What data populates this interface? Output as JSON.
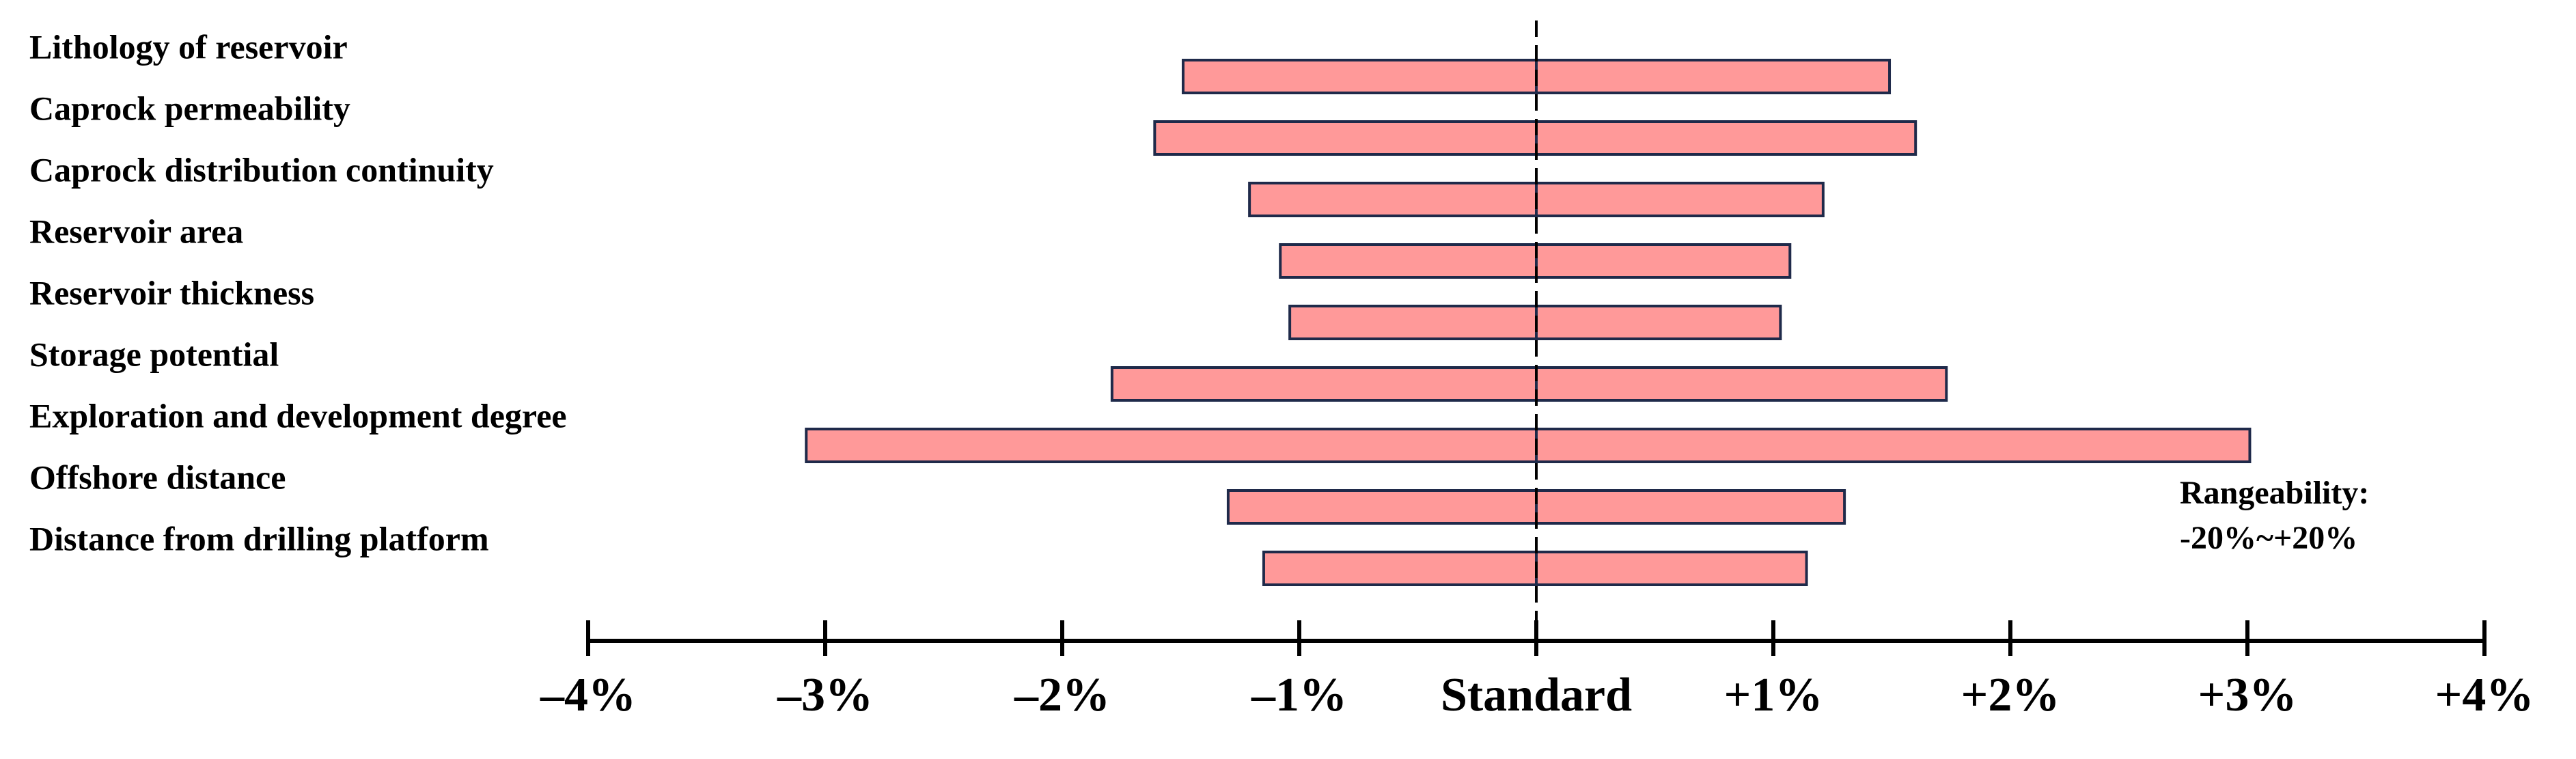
{
  "chart_data": {
    "type": "tornado",
    "categories": [
      "Lithology of reservoir",
      "Caprock permeability",
      "Caprock distribution continuity",
      "Reservoir area",
      "Reservoir thickness",
      "Storage potential",
      "Exploration and development degree",
      "Offshore distance",
      "Distance from drilling platform"
    ],
    "low_values": [
      -1.49,
      -1.61,
      -1.21,
      -1.08,
      -1.04,
      -1.79,
      -3.08,
      -1.3,
      -1.15
    ],
    "high_values": [
      1.49,
      1.6,
      1.21,
      1.07,
      1.03,
      1.73,
      3.01,
      1.3,
      1.14
    ],
    "color": "#ff9999",
    "edge_color": "#1f2a4a",
    "xlim": [
      -4,
      4
    ],
    "xticks": [
      {
        "value": -4,
        "label": "–4%"
      },
      {
        "value": -3,
        "label": "–3%"
      },
      {
        "value": -2,
        "label": "–2%"
      },
      {
        "value": -1,
        "label": "–1%"
      },
      {
        "value": 0,
        "label": "Standard"
      },
      {
        "value": 1,
        "label": "+1%"
      },
      {
        "value": 2,
        "label": "+2%"
      },
      {
        "value": 3,
        "label": "+3%"
      },
      {
        "value": 4,
        "label": "+4%"
      }
    ],
    "annotations": [
      "Rangeability:",
      "-20%~+20%"
    ]
  }
}
